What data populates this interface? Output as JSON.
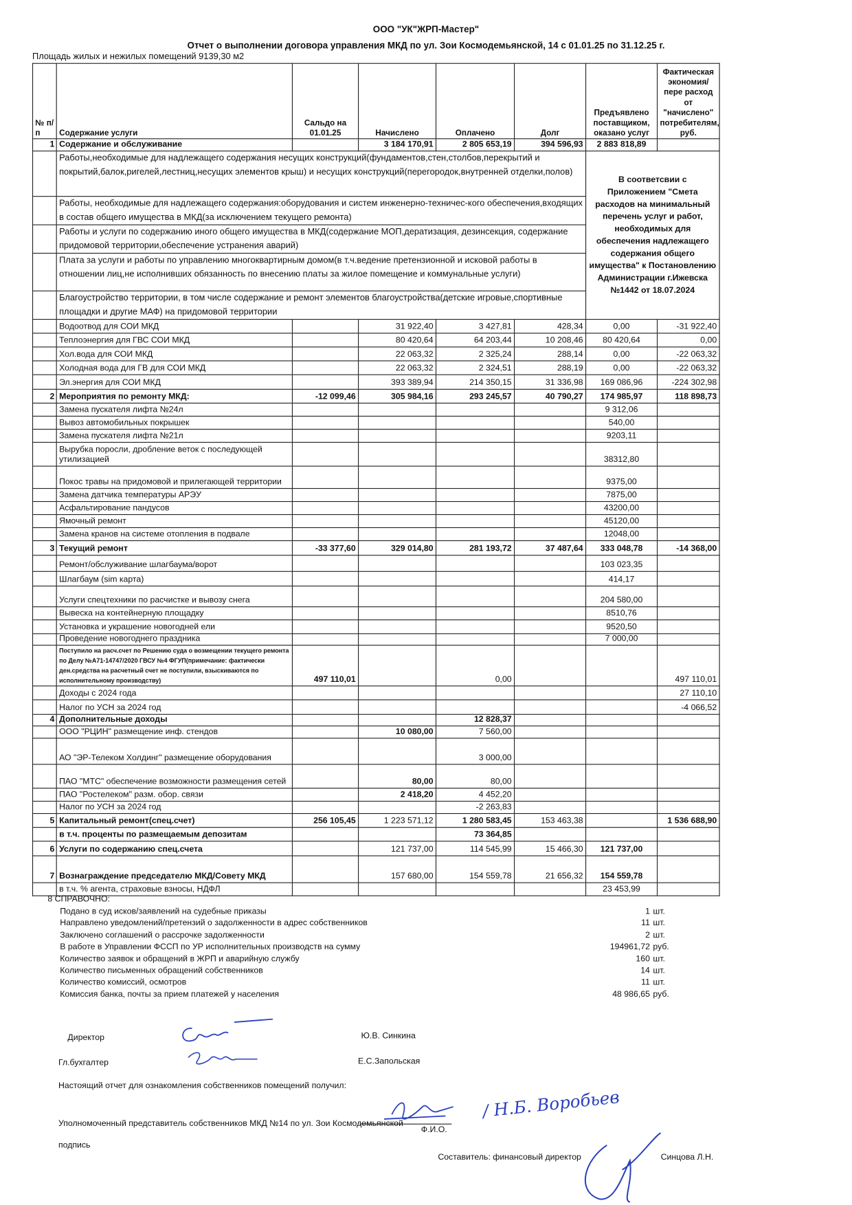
{
  "header": {
    "company": "ООО \"УК\"ЖРП-Мастер\"",
    "report_title": "Отчет о выполнении договора управления МКД  по ул. Зои Космодемьянской, 14 с 01.01.25 по 31.12.25 г.",
    "area": "Площадь жилых и нежилых помещений 9139,30 м2"
  },
  "table": {
    "columns": [
      "№ п/п",
      "Содержание услуги",
      "Сальдо на 01.01.25",
      "Начислено",
      "Оплачено",
      "Долг",
      "Предъявлено поставщиком, оказано услуг",
      "Фактическая экономия/пере расход от \"начислено\" потребителям, руб."
    ],
    "rows": [
      {
        "n": "1",
        "label": "Содержание и обслуживание",
        "values": [
          "",
          "3 184 170,91",
          "2 805 653,19",
          "394 596,93",
          "2 883 818,89",
          ""
        ],
        "bold": true
      },
      {
        "type": "block",
        "label": "Работы,необходимые для надлежащего содержания несущих конструкций(фундаментов,стен,столбов,перекрытий и покрытий,балок,ригелей,лестниц,несущих элементов крыш) и несущих конструкций(перегородок,внутренней отделки,полов)"
      },
      {
        "type": "block",
        "label": "Работы, необходимые для надлежащего содержания:оборудования и систем инженерно-техничес-кого обеспечения,входящих в состав общего имущества в МКД(за исключением текущего ремонта)"
      },
      {
        "type": "block",
        "label": "Работы и услуги по содержанию иного общего имущества в МКД(содержание МОП,дератизация, дезинсекция, содержание придомовой территории,обеспечение устранения аварий)"
      },
      {
        "type": "block",
        "label": "Плата за услуги и работы по управлению многоквартирным домом(в т.ч.ведение претензионной и исковой работы в отношении лиц,не исполнивших обязанность по внесению платы за жилое помещение и коммунальные услуги)"
      },
      {
        "type": "block",
        "label": "Благоустройство территории, в том числе содержание и ремонт элементов благоустройства(детские игровые,спортивные площадки и другие МАФ) на придомовой территории"
      },
      {
        "n": "",
        "label": "Водоотвод для СОИ МКД",
        "values": [
          "",
          "31 922,40",
          "3 427,81",
          "428,34",
          "0,00",
          "-31 922,40"
        ]
      },
      {
        "n": "",
        "label": "Теплоэнергия для ГВС СОИ МКД",
        "values": [
          "",
          "80 420,64",
          "64 203,44",
          "10 208,46",
          "80 420,64",
          "0,00"
        ]
      },
      {
        "n": "",
        "label": "Хол.вода для СОИ МКД",
        "values": [
          "",
          "22 063,32",
          "2 325,24",
          "288,14",
          "0,00",
          "-22 063,32"
        ]
      },
      {
        "n": "",
        "label": "Холодная вода для ГВ для СОИ МКД",
        "values": [
          "",
          "22 063,32",
          "2 324,51",
          "288,19",
          "0,00",
          "-22 063,32"
        ]
      },
      {
        "n": "",
        "label": "Эл.энергия для СОИ МКД",
        "values": [
          "",
          "393 389,94",
          "214 350,15",
          "31 336,98",
          "169 086,96",
          "-224 302,98"
        ]
      },
      {
        "n": "2",
        "label": "Мероприятия по ремонту МКД:",
        "values": [
          "-12 099,46",
          "305 984,16",
          "293 245,57",
          "40 790,27",
          "174 985,97",
          "118 898,73"
        ],
        "bold": true
      },
      {
        "n": "",
        "label": "Замена пускателя лифта  №24л",
        "values": [
          "",
          "",
          "",
          "",
          "9 312,06",
          ""
        ]
      },
      {
        "n": "",
        "label": "Вывоз автомобильных покрышек",
        "values": [
          "",
          "",
          "",
          "",
          "540,00",
          ""
        ]
      },
      {
        "n": "",
        "label": "Замена пускателя лифта  №21л",
        "values": [
          "",
          "",
          "",
          "",
          "9203,11",
          ""
        ]
      },
      {
        "n": "",
        "label": "Вырубка поросли, дробление веток с последующей утилизацией",
        "values": [
          "",
          "",
          "",
          "",
          "38312,80",
          ""
        ]
      },
      {
        "n": "",
        "label": "Покос травы на придомовой и прилегающей территории",
        "values": [
          "",
          "",
          "",
          "",
          "9375,00",
          ""
        ]
      },
      {
        "n": "",
        "label": "Замена датчика температуры АРЭУ",
        "values": [
          "",
          "",
          "",
          "",
          "7875,00",
          ""
        ]
      },
      {
        "n": "",
        "label": "Асфальтирование пандусов",
        "values": [
          "",
          "",
          "",
          "",
          "43200,00",
          ""
        ]
      },
      {
        "n": "",
        "label": "Ямочный ремонт",
        "values": [
          "",
          "",
          "",
          "",
          "45120,00",
          ""
        ]
      },
      {
        "n": "",
        "label": "Замена кранов на системе отопления в подвале",
        "values": [
          "",
          "",
          "",
          "",
          "12048,00",
          ""
        ]
      },
      {
        "n": "3",
        "label": "Текущий ремонт",
        "values": [
          "-33 377,60",
          "329 014,80",
          "281 193,72",
          "37 487,64",
          "333 048,78",
          "-14 368,00"
        ],
        "bold": true
      },
      {
        "n": "",
        "label": "Ремонт/обслуживание шлагбаума/ворот",
        "values": [
          "",
          "",
          "",
          "",
          "103 023,35",
          ""
        ]
      },
      {
        "n": "",
        "label": "Шлагбаум  (sim карта)",
        "values": [
          "",
          "",
          "",
          "",
          "414,17",
          ""
        ]
      },
      {
        "n": "",
        "label": "Услуги спецтехники по расчистке и вывозу снега",
        "values": [
          "",
          "",
          "",
          "",
          "204 580,00",
          ""
        ]
      },
      {
        "n": "",
        "label": "Вывеска на контейнерную площадку",
        "values": [
          "",
          "",
          "",
          "",
          "8510,76",
          ""
        ]
      },
      {
        "n": "",
        "label": "Установка и украшение новогодней ели",
        "values": [
          "",
          "",
          "",
          "",
          "9520,50",
          ""
        ]
      },
      {
        "n": "",
        "label": "Проведение новогоднего праздника",
        "values": [
          "",
          "",
          "",
          "",
          "7 000,00",
          ""
        ]
      },
      {
        "n": "",
        "label": "Поступило на расч.счет по Решению суда о возмещении текущего ремонта по Делу №А71-14747/2020 ГВСУ №4 ФГУП(примечание: фактически ден.средства на расчетный счет не поступили, взыскиваются по исполнительному производству)",
        "values": [
          "497 110,01",
          "",
          "0,00",
          "",
          "",
          "497 110,01"
        ],
        "small": true
      },
      {
        "n": "",
        "label": "Доходы с 2024 года",
        "values": [
          "",
          "",
          "",
          "",
          "",
          "27 110,10"
        ]
      },
      {
        "n": "",
        "label": "Налог по УСН за 2024 год",
        "values": [
          "",
          "",
          "",
          "",
          "",
          "-4 066,52"
        ]
      },
      {
        "n": "4",
        "label": "Дополнительные доходы",
        "values": [
          "",
          "",
          "12 828,37",
          "",
          "",
          ""
        ],
        "bold": true
      },
      {
        "n": "",
        "label": "ООО \"РЦИН\" размещение инф. стендов",
        "values": [
          "",
          "10 080,00",
          "7 560,00",
          "",
          "",
          ""
        ]
      },
      {
        "n": "",
        "label": "АО \"ЭР-Телеком Холдинг\" размещение оборудования",
        "values": [
          "",
          "",
          "3 000,00",
          "",
          "",
          ""
        ]
      },
      {
        "n": "",
        "label": "ПАО \"МТС\" обеспечение возможности размещения сетей",
        "values": [
          "",
          "80,00",
          "80,00",
          "",
          "",
          ""
        ]
      },
      {
        "n": "",
        "label": "ПАО \"Ростелеком\" разм. обор. связи",
        "values": [
          "",
          "2 418,20",
          "4 452,20",
          "",
          "",
          ""
        ]
      },
      {
        "n": "",
        "label": "Налог по УСН за 2024 год",
        "values": [
          "",
          "",
          "-2 263,83",
          "",
          "",
          ""
        ]
      },
      {
        "n": "5",
        "label": "Капитальный ремонт(спец.счет)",
        "values": [
          "256 105,45",
          "1 223 571,12",
          "1 280 583,45",
          "153 463,38",
          "",
          "1 536 688,90"
        ],
        "bold": true
      },
      {
        "n": "",
        "label": "в т.ч. проценты по размещаемым депозитам",
        "values": [
          "",
          "",
          "73 364,85",
          "",
          "",
          ""
        ],
        "bold": true
      },
      {
        "n": "6",
        "label": "Услуги по содержанию спец.счета",
        "values": [
          "",
          "121 737,00",
          "114 545,99",
          "15 466,30",
          "121 737,00",
          ""
        ],
        "bold": true
      },
      {
        "n": "7",
        "label": "Вознаграждение председателю МКД/Совету МКД",
        "values": [
          "",
          "157 680,00",
          "154 559,78",
          "21 656,32",
          "154 559,78",
          ""
        ],
        "bold": true
      },
      {
        "n": "",
        "label": "в т.ч. % агента, страховые взносы, НДФЛ",
        "values": [
          "",
          "",
          "",
          "",
          "23 453,99",
          ""
        ]
      }
    ],
    "block_note": "В соответсвии с Приложением \"Смета расходов на минимальный перечень услуг и работ, необходимых для обеспечения надлежащего содержания общего имущества\" к Постановлению Администрации г.Ижевска №1442 от 18.07.2024"
  },
  "reference": {
    "heading": "8  СПРАВОЧНО:",
    "items": [
      {
        "label": "Подано в суд исков/заявлений на судебные приказы",
        "value": "1",
        "unit": "шт."
      },
      {
        "label": "Направлено уведомлений/претензий о задолженности в адрес собственников",
        "value": "11",
        "unit": "шт."
      },
      {
        "label": "Заключено соглашений о рассрочке задолженности",
        "value": "2",
        "unit": "шт."
      },
      {
        "label": "В работе в Управлении ФССП по УР исполнительных производств на сумму",
        "value": "194961,72",
        "unit": "руб."
      },
      {
        "label": "Количество заявок и обращений в ЖРП и аварийную службу",
        "value": "160",
        "unit": "шт."
      },
      {
        "label": "Количество письменных обращений собственников",
        "value": "14",
        "unit": "шт."
      },
      {
        "label": "Количество комиссий, осмотров",
        "value": "11",
        "unit": "шт."
      },
      {
        "label": "Комиссия банка, почты за прием платежей у населения",
        "value": "48 986,65",
        "unit": "руб."
      }
    ]
  },
  "signatures": {
    "director_label": "Директор",
    "director_name": "Ю.В. Синкина",
    "accountant_label": "Гл.бухгалтер",
    "accountant_name": "Е.С.Запольская",
    "received_text": "Настоящий отчет для ознакомления собственников помещений получил:",
    "representative_text": "Уполномоченный представитель собственников МКД №14 по ул. Зои Космодемьянской",
    "handwritten_name": "/ Н.Б. Воробьев",
    "fio_label": "Ф.И.О.",
    "signature_label": "подпись",
    "compiler_label": "Составитель: финансовый директор",
    "compiler_name": "Синцова Л.Н.",
    "ink_color": "#2a3fbf"
  }
}
